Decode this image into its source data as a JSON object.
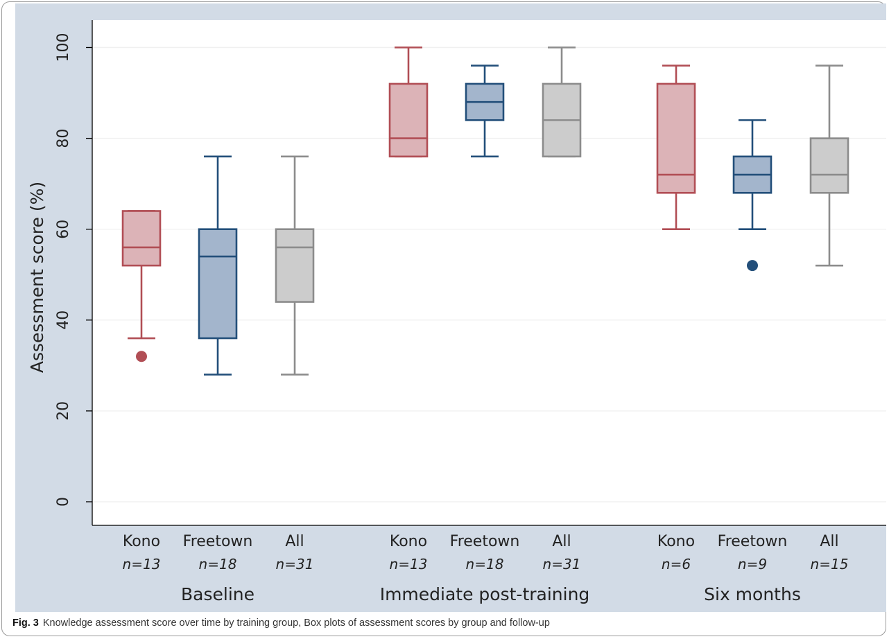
{
  "caption": {
    "label": "Fig. 3",
    "text": "Knowledge assessment score over time by training group, Box plots of assessment scores by group and follow-up"
  },
  "chart_data": {
    "type": "box",
    "ylabel": "Assessment score (%)",
    "ylim": [
      -5,
      105
    ],
    "yticks": [
      0,
      20,
      40,
      60,
      80,
      100
    ],
    "grid": true,
    "colors": {
      "Kono": {
        "fill": "#dcb3b7",
        "stroke": "#b14e55"
      },
      "Freetown": {
        "fill": "#a3b5cc",
        "stroke": "#234f7a"
      },
      "All": {
        "fill": "#cccccc",
        "stroke": "#8c8c8c"
      }
    },
    "panels": [
      {
        "timepoint": "Baseline",
        "boxes": [
          {
            "group": "Kono",
            "n": "n=13",
            "whisker_low": 36,
            "q1": 52,
            "median": 56,
            "q3": 64,
            "whisker_high": 64,
            "outliers": [
              32
            ]
          },
          {
            "group": "Freetown",
            "n": "n=18",
            "whisker_low": 28,
            "q1": 36,
            "median": 54,
            "q3": 60,
            "whisker_high": 76,
            "outliers": []
          },
          {
            "group": "All",
            "n": "n=31",
            "whisker_low": 28,
            "q1": 44,
            "median": 56,
            "q3": 60,
            "whisker_high": 76,
            "outliers": []
          }
        ]
      },
      {
        "timepoint": "Immediate post-training",
        "boxes": [
          {
            "group": "Kono",
            "n": "n=13",
            "whisker_low": 76,
            "q1": 76,
            "median": 80,
            "q3": 92,
            "whisker_high": 100,
            "outliers": []
          },
          {
            "group": "Freetown",
            "n": "n=18",
            "whisker_low": 76,
            "q1": 84,
            "median": 88,
            "q3": 92,
            "whisker_high": 96,
            "outliers": []
          },
          {
            "group": "All",
            "n": "n=31",
            "whisker_low": 76,
            "q1": 76,
            "median": 84,
            "q3": 92,
            "whisker_high": 100,
            "outliers": []
          }
        ]
      },
      {
        "timepoint": "Six months",
        "boxes": [
          {
            "group": "Kono",
            "n": "n=6",
            "whisker_low": 60,
            "q1": 68,
            "median": 72,
            "q3": 92,
            "whisker_high": 96,
            "outliers": []
          },
          {
            "group": "Freetown",
            "n": "n=9",
            "whisker_low": 60,
            "q1": 68,
            "median": 72,
            "q3": 76,
            "whisker_high": 84,
            "outliers": [
              52
            ]
          },
          {
            "group": "All",
            "n": "n=15",
            "whisker_low": 52,
            "q1": 68,
            "median": 72,
            "q3": 80,
            "whisker_high": 96,
            "outliers": []
          }
        ]
      }
    ]
  }
}
